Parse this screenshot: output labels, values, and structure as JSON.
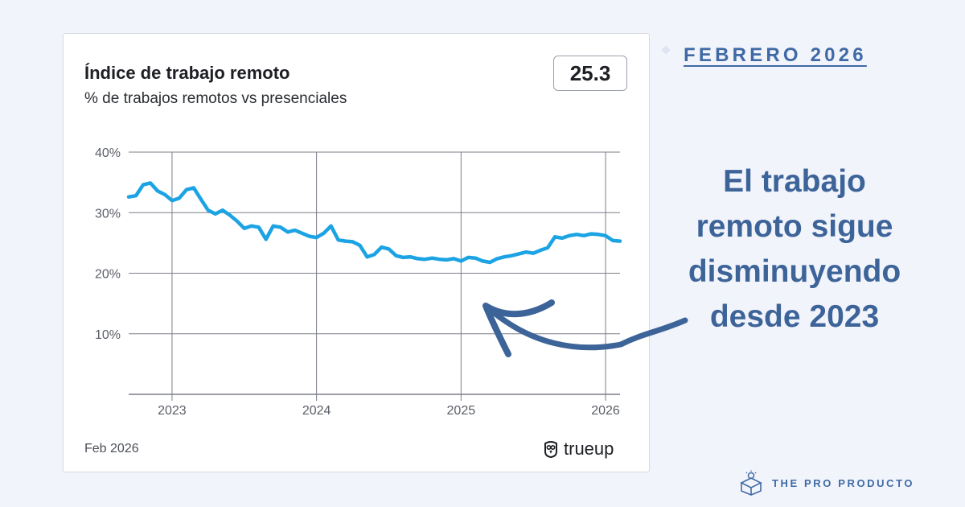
{
  "card": {
    "title": "Índice de trabajo remoto",
    "subtitle": "% de trabajos remotos vs presenciales",
    "current_value": "25.3",
    "date_label": "Feb 2026",
    "brand": "trueup"
  },
  "side": {
    "month_heading": "FEBRERO 2026",
    "headline": "El trabajo remoto sigue disminuyendo desde 2023",
    "footer_brand": "THE PRO PRODUCTO"
  },
  "colors": {
    "line": "#1ba3e4",
    "accent": "#3d6499",
    "grid": "#7b7f8a"
  },
  "chart_data": {
    "type": "line",
    "title": "Índice de trabajo remoto",
    "subtitle": "% de trabajos remotos vs presenciales",
    "x_ticks": [
      "2023",
      "2024",
      "2025",
      "2026"
    ],
    "y_ticks": [
      "10%",
      "20%",
      "30%",
      "40%"
    ],
    "xlim": [
      2022.7,
      2026.1
    ],
    "ylim": [
      0,
      40
    ],
    "grid": true,
    "series": [
      {
        "x": [
          2022.7,
          2022.75,
          2022.8,
          2022.85,
          2022.9,
          2022.95,
          2023.0,
          2023.05,
          2023.1,
          2023.15,
          2023.2,
          2023.25,
          2023.3,
          2023.35,
          2023.4,
          2023.45,
          2023.5,
          2023.55,
          2023.6,
          2023.65,
          2023.7,
          2023.75,
          2023.8,
          2023.85,
          2023.9,
          2023.95,
          2024.0,
          2024.05,
          2024.1,
          2024.15,
          2024.2,
          2024.25,
          2024.3,
          2024.35,
          2024.4,
          2024.45,
          2024.5,
          2024.55,
          2024.6,
          2024.65,
          2024.7,
          2024.75,
          2024.8,
          2024.85,
          2024.9,
          2024.95,
          2025.0,
          2025.05,
          2025.1,
          2025.15,
          2025.2,
          2025.25,
          2025.3,
          2025.35,
          2025.4,
          2025.45,
          2025.5,
          2025.55,
          2025.6,
          2025.65,
          2025.7,
          2025.75,
          2025.8,
          2025.85,
          2025.9,
          2025.95,
          2026.0,
          2026.05,
          2026.1
        ],
        "values": [
          32.6,
          32.8,
          34.6,
          34.9,
          33.6,
          33.0,
          32.0,
          32.4,
          33.8,
          34.1,
          32.2,
          30.4,
          29.8,
          30.4,
          29.6,
          28.6,
          27.4,
          27.8,
          27.6,
          25.6,
          27.8,
          27.6,
          26.8,
          27.1,
          26.6,
          26.1,
          25.9,
          26.6,
          27.8,
          25.5,
          25.3,
          25.2,
          24.6,
          22.7,
          23.1,
          24.3,
          24.0,
          22.9,
          22.6,
          22.7,
          22.4,
          22.3,
          22.5,
          22.3,
          22.2,
          22.4,
          22.0,
          22.6,
          22.5,
          22.0,
          21.8,
          22.4,
          22.7,
          22.9,
          23.2,
          23.5,
          23.3,
          23.8,
          24.2,
          26.0,
          25.8,
          26.2,
          26.4,
          26.2,
          26.5,
          26.4,
          26.2,
          25.4,
          25.3
        ],
        "color": "#1ba3e4"
      }
    ]
  }
}
